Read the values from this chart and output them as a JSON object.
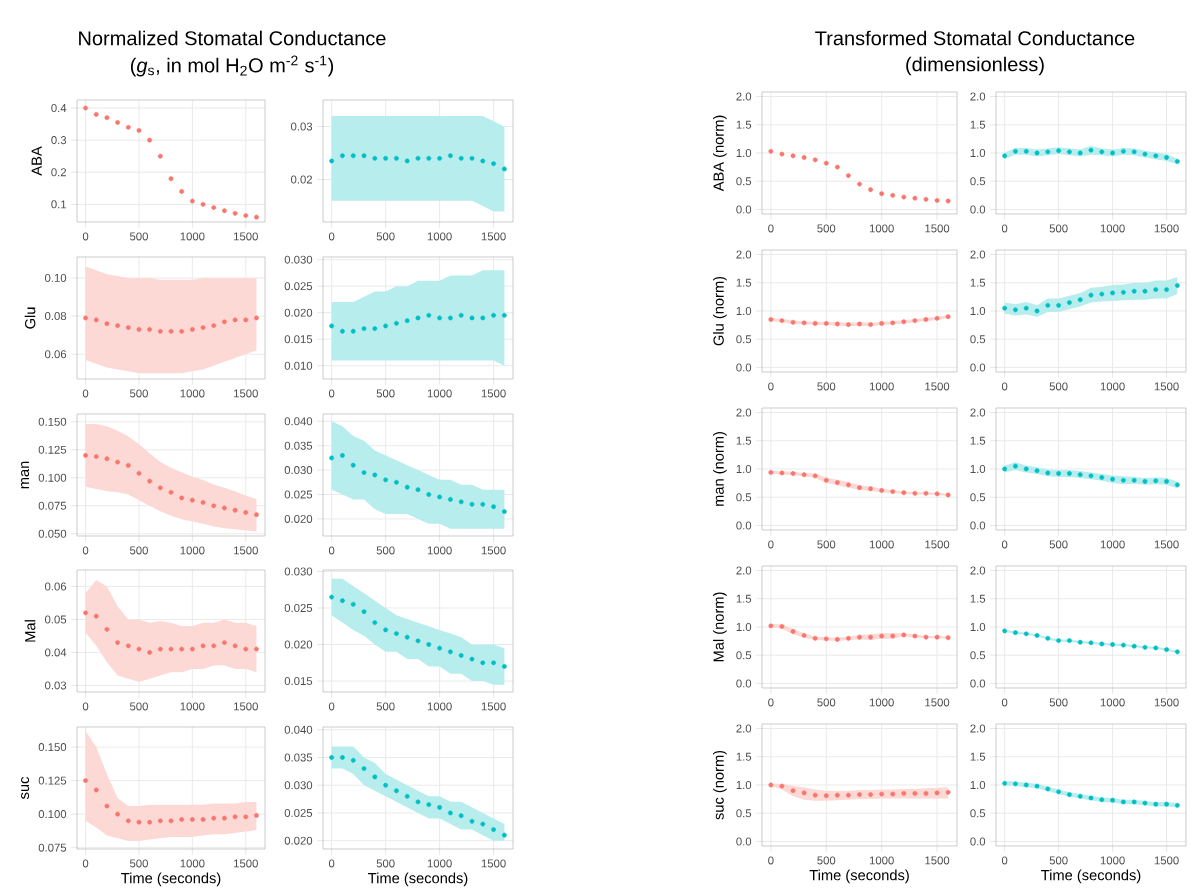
{
  "chart_data": [
    {
      "type": "scatter",
      "title": "Normalized Stomatal Conductance",
      "subtitle": "(*g*$_{s}$, in mol H$_{2}$O m$^{-2}$ s$^{-1}$)",
      "ylabel": "ABA",
      "x": [
        0,
        100,
        200,
        300,
        400,
        500,
        600,
        700,
        800,
        900,
        1000,
        1100,
        1200,
        1300,
        1400,
        1500,
        1600
      ],
      "xlim": [
        -80,
        1680
      ],
      "xticks": [
        0,
        500,
        1000,
        1500
      ],
      "ylim": [
        0.045,
        0.425
      ],
      "yticks": [
        0.1,
        0.2,
        0.3,
        0.4
      ],
      "grid": true,
      "marker": "circle",
      "series": [
        {
          "color": "#f8766d",
          "values": [
            0.4,
            0.38,
            0.37,
            0.355,
            0.34,
            0.33,
            0.3,
            0.25,
            0.18,
            0.14,
            0.11,
            0.1,
            0.09,
            0.08,
            0.072,
            0.065,
            0.06
          ]
        }
      ]
    },
    {
      "type": "scatter",
      "x": [
        0,
        100,
        200,
        300,
        400,
        500,
        600,
        700,
        800,
        900,
        1000,
        1100,
        1200,
        1300,
        1400,
        1500,
        1600
      ],
      "xlim": [
        -80,
        1680
      ],
      "xticks": [
        0,
        500,
        1000,
        1500
      ],
      "ylim": [
        0.012,
        0.035
      ],
      "yticks": [
        {
          "value": 0.02,
          "label": "0.02"
        },
        {
          "value": 0.03,
          "label": "0.03"
        }
      ],
      "grid": true,
      "marker": "circle",
      "series": [
        {
          "color": "#00bfc4",
          "values": [
            0.0235,
            0.0245,
            0.0245,
            0.0245,
            0.024,
            0.024,
            0.024,
            0.0235,
            0.024,
            0.024,
            0.024,
            0.0245,
            0.024,
            0.024,
            0.0235,
            0.023,
            0.022
          ],
          "lower": [
            0.016,
            0.016,
            0.016,
            0.016,
            0.016,
            0.016,
            0.016,
            0.016,
            0.016,
            0.016,
            0.016,
            0.016,
            0.016,
            0.016,
            0.015,
            0.014,
            0.014
          ],
          "upper": [
            0.032,
            0.032,
            0.032,
            0.032,
            0.032,
            0.032,
            0.032,
            0.032,
            0.032,
            0.032,
            0.032,
            0.032,
            0.032,
            0.032,
            0.032,
            0.031,
            0.03
          ]
        }
      ]
    },
    {
      "type": "scatter",
      "ylabel": "Glu",
      "x": [
        0,
        100,
        200,
        300,
        400,
        500,
        600,
        700,
        800,
        900,
        1000,
        1100,
        1200,
        1300,
        1400,
        1500,
        1600
      ],
      "xlim": [
        -80,
        1680
      ],
      "xticks": [
        0,
        500,
        1000,
        1500
      ],
      "ylim": [
        0.047,
        0.111
      ],
      "yticks": [
        {
          "value": 0.06,
          "label": "0.06"
        },
        {
          "value": 0.08,
          "label": "0.08"
        },
        {
          "value": 0.1,
          "label": "0.10"
        }
      ],
      "grid": true,
      "marker": "circle",
      "series": [
        {
          "color": "#f8766d",
          "values": [
            0.079,
            0.078,
            0.076,
            0.075,
            0.074,
            0.073,
            0.073,
            0.072,
            0.072,
            0.072,
            0.073,
            0.074,
            0.075,
            0.077,
            0.078,
            0.078,
            0.079
          ],
          "lower": [
            0.057,
            0.055,
            0.053,
            0.052,
            0.051,
            0.05,
            0.05,
            0.05,
            0.05,
            0.05,
            0.051,
            0.052,
            0.054,
            0.056,
            0.058,
            0.06,
            0.062
          ],
          "upper": [
            0.106,
            0.104,
            0.102,
            0.101,
            0.1,
            0.1,
            0.1,
            0.099,
            0.099,
            0.099,
            0.099,
            0.1,
            0.1,
            0.1,
            0.1,
            0.1,
            0.1
          ]
        }
      ]
    },
    {
      "type": "scatter",
      "x": [
        0,
        100,
        200,
        300,
        400,
        500,
        600,
        700,
        800,
        900,
        1000,
        1100,
        1200,
        1300,
        1400,
        1500,
        1600
      ],
      "xlim": [
        -80,
        1680
      ],
      "xticks": [
        0,
        500,
        1000,
        1500
      ],
      "ylim": [
        0.0075,
        0.0305
      ],
      "yticks": [
        {
          "value": 0.01,
          "label": "0.010"
        },
        {
          "value": 0.015,
          "label": "0.015"
        },
        {
          "value": 0.02,
          "label": "0.020"
        },
        {
          "value": 0.025,
          "label": "0.025"
        },
        {
          "value": 0.03,
          "label": "0.030"
        }
      ],
      "grid": true,
      "marker": "circle",
      "series": [
        {
          "color": "#00bfc4",
          "values": [
            0.0175,
            0.0165,
            0.0165,
            0.017,
            0.017,
            0.0175,
            0.018,
            0.0185,
            0.019,
            0.0195,
            0.019,
            0.019,
            0.0195,
            0.019,
            0.019,
            0.0195,
            0.0195
          ],
          "lower": [
            0.011,
            0.011,
            0.011,
            0.011,
            0.011,
            0.011,
            0.011,
            0.011,
            0.011,
            0.011,
            0.011,
            0.011,
            0.011,
            0.011,
            0.011,
            0.011,
            0.01
          ],
          "upper": [
            0.022,
            0.022,
            0.022,
            0.023,
            0.024,
            0.024,
            0.025,
            0.025,
            0.026,
            0.026,
            0.026,
            0.027,
            0.027,
            0.027,
            0.028,
            0.028,
            0.028
          ]
        }
      ]
    },
    {
      "type": "scatter",
      "ylabel": "man",
      "x": [
        0,
        100,
        200,
        300,
        400,
        500,
        600,
        700,
        800,
        900,
        1000,
        1100,
        1200,
        1300,
        1400,
        1500,
        1600
      ],
      "xlim": [
        -80,
        1680
      ],
      "xticks": [
        0,
        500,
        1000,
        1500
      ],
      "ylim": [
        0.048,
        0.157
      ],
      "yticks": [
        {
          "value": 0.05,
          "label": "0.050"
        },
        {
          "value": 0.075,
          "label": "0.075"
        },
        {
          "value": 0.1,
          "label": "0.100"
        },
        {
          "value": 0.125,
          "label": "0.125"
        },
        {
          "value": 0.15,
          "label": "0.150"
        }
      ],
      "grid": true,
      "marker": "circle",
      "series": [
        {
          "color": "#f8766d",
          "values": [
            0.12,
            0.119,
            0.117,
            0.114,
            0.111,
            0.104,
            0.097,
            0.091,
            0.087,
            0.082,
            0.08,
            0.078,
            0.075,
            0.073,
            0.071,
            0.069,
            0.067
          ],
          "lower": [
            0.092,
            0.09,
            0.088,
            0.087,
            0.085,
            0.08,
            0.075,
            0.07,
            0.066,
            0.063,
            0.061,
            0.059,
            0.0565,
            0.055,
            0.054,
            0.053,
            0.052
          ],
          "upper": [
            0.148,
            0.148,
            0.146,
            0.142,
            0.137,
            0.13,
            0.122,
            0.114,
            0.109,
            0.105,
            0.101,
            0.098,
            0.094,
            0.091,
            0.088,
            0.084,
            0.081
          ]
        }
      ]
    },
    {
      "type": "scatter",
      "x": [
        0,
        100,
        200,
        300,
        400,
        500,
        600,
        700,
        800,
        900,
        1000,
        1100,
        1200,
        1300,
        1400,
        1500,
        1600
      ],
      "xlim": [
        -80,
        1680
      ],
      "xticks": [
        0,
        500,
        1000,
        1500
      ],
      "ylim": [
        0.0165,
        0.0415
      ],
      "yticks": [
        {
          "value": 0.02,
          "label": "0.020"
        },
        {
          "value": 0.025,
          "label": "0.025"
        },
        {
          "value": 0.03,
          "label": "0.030"
        },
        {
          "value": 0.035,
          "label": "0.035"
        },
        {
          "value": 0.04,
          "label": "0.040"
        }
      ],
      "grid": true,
      "marker": "circle",
      "series": [
        {
          "color": "#00bfc4",
          "values": [
            0.0325,
            0.033,
            0.031,
            0.0295,
            0.029,
            0.028,
            0.0275,
            0.0265,
            0.026,
            0.025,
            0.0245,
            0.024,
            0.0235,
            0.023,
            0.023,
            0.0225,
            0.0215
          ],
          "lower": [
            0.026,
            0.025,
            0.024,
            0.024,
            0.022,
            0.021,
            0.021,
            0.021,
            0.02,
            0.019,
            0.019,
            0.018,
            0.018,
            0.018,
            0.018,
            0.018,
            0.018
          ],
          "upper": [
            0.04,
            0.039,
            0.037,
            0.036,
            0.034,
            0.033,
            0.032,
            0.031,
            0.03,
            0.029,
            0.028,
            0.028,
            0.027,
            0.027,
            0.026,
            0.026,
            0.026
          ]
        }
      ]
    },
    {
      "type": "scatter",
      "ylabel": "Mal",
      "x": [
        0,
        100,
        200,
        300,
        400,
        500,
        600,
        700,
        800,
        900,
        1000,
        1100,
        1200,
        1300,
        1400,
        1500,
        1600
      ],
      "xlim": [
        -80,
        1680
      ],
      "xticks": [
        0,
        500,
        1000,
        1500
      ],
      "ylim": [
        0.028,
        0.065
      ],
      "yticks": [
        {
          "value": 0.03,
          "label": "0.03"
        },
        {
          "value": 0.04,
          "label": "0.04"
        },
        {
          "value": 0.05,
          "label": "0.05"
        },
        {
          "value": 0.06,
          "label": "0.06"
        }
      ],
      "grid": true,
      "marker": "circle",
      "series": [
        {
          "color": "#f8766d",
          "values": [
            0.052,
            0.051,
            0.047,
            0.043,
            0.042,
            0.041,
            0.04,
            0.041,
            0.041,
            0.041,
            0.041,
            0.042,
            0.042,
            0.043,
            0.042,
            0.041,
            0.041
          ],
          "lower": [
            0.046,
            0.042,
            0.037,
            0.033,
            0.032,
            0.031,
            0.032,
            0.033,
            0.034,
            0.034,
            0.035,
            0.035,
            0.036,
            0.036,
            0.035,
            0.035,
            0.034
          ],
          "upper": [
            0.058,
            0.062,
            0.06,
            0.054,
            0.05,
            0.05,
            0.049,
            0.0495,
            0.049,
            0.048,
            0.048,
            0.049,
            0.049,
            0.05,
            0.049,
            0.049,
            0.048
          ]
        }
      ]
    },
    {
      "type": "scatter",
      "x": [
        0,
        100,
        200,
        300,
        400,
        500,
        600,
        700,
        800,
        900,
        1000,
        1100,
        1200,
        1300,
        1400,
        1500,
        1600
      ],
      "xlim": [
        -80,
        1680
      ],
      "xticks": [
        0,
        500,
        1000,
        1500
      ],
      "ylim": [
        0.0135,
        0.0302
      ],
      "yticks": [
        {
          "value": 0.015,
          "label": "0.015"
        },
        {
          "value": 0.02,
          "label": "0.020"
        },
        {
          "value": 0.025,
          "label": "0.025"
        },
        {
          "value": 0.03,
          "label": "0.030"
        }
      ],
      "grid": true,
      "marker": "circle",
      "series": [
        {
          "color": "#00bfc4",
          "values": [
            0.0265,
            0.026,
            0.0255,
            0.0245,
            0.023,
            0.022,
            0.0215,
            0.021,
            0.0205,
            0.02,
            0.0195,
            0.019,
            0.0185,
            0.018,
            0.0175,
            0.0175,
            0.017
          ],
          "lower": [
            0.024,
            0.023,
            0.022,
            0.0212,
            0.02,
            0.019,
            0.019,
            0.018,
            0.018,
            0.017,
            0.017,
            0.016,
            0.016,
            0.015,
            0.015,
            0.0145,
            0.0145
          ],
          "upper": [
            0.029,
            0.029,
            0.028,
            0.027,
            0.026,
            0.025,
            0.024,
            0.0235,
            0.023,
            0.0225,
            0.022,
            0.0215,
            0.021,
            0.02,
            0.02,
            0.02,
            0.0195
          ]
        }
      ]
    },
    {
      "type": "scatter",
      "ylabel": "suc",
      "xlabel": "Time (seconds)",
      "x": [
        0,
        100,
        200,
        300,
        400,
        500,
        600,
        700,
        800,
        900,
        1000,
        1100,
        1200,
        1300,
        1400,
        1500,
        1600
      ],
      "xlim": [
        -80,
        1680
      ],
      "xticks": [
        0,
        500,
        1000,
        1500
      ],
      "ylim": [
        0.074,
        0.165
      ],
      "yticks": [
        {
          "value": 0.075,
          "label": "0.075"
        },
        {
          "value": 0.1,
          "label": "0.100"
        },
        {
          "value": 0.125,
          "label": "0.125"
        },
        {
          "value": 0.15,
          "label": "0.150"
        }
      ],
      "grid": true,
      "marker": "circle",
      "series": [
        {
          "color": "#f8766d",
          "values": [
            0.125,
            0.118,
            0.106,
            0.1,
            0.095,
            0.094,
            0.094,
            0.095,
            0.095,
            0.096,
            0.096,
            0.096,
            0.097,
            0.097,
            0.098,
            0.098,
            0.099
          ],
          "lower": [
            0.095,
            0.09,
            0.084,
            0.082,
            0.08,
            0.08,
            0.081,
            0.082,
            0.083,
            0.083,
            0.083,
            0.084,
            0.085,
            0.085,
            0.086,
            0.087,
            0.088
          ],
          "upper": [
            0.162,
            0.15,
            0.13,
            0.112,
            0.106,
            0.106,
            0.107,
            0.107,
            0.107,
            0.107,
            0.107,
            0.107,
            0.108,
            0.108,
            0.108,
            0.109,
            0.109
          ]
        }
      ]
    },
    {
      "type": "scatter",
      "xlabel": "Time (seconds)",
      "x": [
        0,
        100,
        200,
        300,
        400,
        500,
        600,
        700,
        800,
        900,
        1000,
        1100,
        1200,
        1300,
        1400,
        1500,
        1600
      ],
      "xlim": [
        -80,
        1680
      ],
      "xticks": [
        0,
        500,
        1000,
        1500
      ],
      "ylim": [
        0.0185,
        0.0405
      ],
      "yticks": [
        {
          "value": 0.02,
          "label": "0.020"
        },
        {
          "value": 0.025,
          "label": "0.025"
        },
        {
          "value": 0.03,
          "label": "0.030"
        },
        {
          "value": 0.035,
          "label": "0.035"
        },
        {
          "value": 0.04,
          "label": "0.040"
        }
      ],
      "grid": true,
      "marker": "circle",
      "series": [
        {
          "color": "#00bfc4",
          "values": [
            0.035,
            0.035,
            0.0345,
            0.033,
            0.0315,
            0.03,
            0.029,
            0.028,
            0.027,
            0.0265,
            0.026,
            0.025,
            0.0245,
            0.0235,
            0.023,
            0.022,
            0.021
          ],
          "lower": [
            0.033,
            0.033,
            0.032,
            0.03,
            0.029,
            0.028,
            0.027,
            0.026,
            0.025,
            0.024,
            0.024,
            0.023,
            0.022,
            0.022,
            0.021,
            0.02,
            0.02
          ],
          "upper": [
            0.037,
            0.037,
            0.037,
            0.035,
            0.034,
            0.032,
            0.031,
            0.03,
            0.029,
            0.028,
            0.028,
            0.027,
            0.027,
            0.026,
            0.025,
            0.024,
            0.023
          ]
        }
      ]
    },
    {
      "type": "scatter",
      "title": "Transformed Stomatal Conductance",
      "subtitle": "(dimensionless)",
      "ylabel": "ABA (norm)",
      "x": [
        0,
        100,
        200,
        300,
        400,
        500,
        600,
        700,
        800,
        900,
        1000,
        1100,
        1200,
        1300,
        1400,
        1500,
        1600
      ],
      "xlim": [
        -80,
        1680
      ],
      "xticks": [
        0,
        500,
        1000,
        1500
      ],
      "ylim": [
        -0.08,
        2.08
      ],
      "yticks": [
        {
          "value": 0,
          "label": "0.0"
        },
        {
          "value": 0.5,
          "label": "0.5"
        },
        {
          "value": 1,
          "label": "1.0"
        },
        {
          "value": 1.5,
          "label": "1.5"
        },
        {
          "value": 2,
          "label": "2.0"
        }
      ],
      "grid": true,
      "marker": "circle",
      "series": [
        {
          "color": "#f8766d",
          "values": [
            1.03,
            0.98,
            0.95,
            0.92,
            0.88,
            0.82,
            0.75,
            0.6,
            0.45,
            0.35,
            0.28,
            0.25,
            0.22,
            0.2,
            0.18,
            0.16,
            0.15
          ]
        }
      ]
    },
    {
      "type": "scatter",
      "x": [
        0,
        100,
        200,
        300,
        400,
        500,
        600,
        700,
        800,
        900,
        1000,
        1100,
        1200,
        1300,
        1400,
        1500,
        1600
      ],
      "xlim": [
        -80,
        1680
      ],
      "xticks": [
        0,
        500,
        1000,
        1500
      ],
      "ylim": [
        -0.08,
        2.08
      ],
      "yticks": [
        {
          "value": 0,
          "label": "0.0"
        },
        {
          "value": 0.5,
          "label": "0.5"
        },
        {
          "value": 1,
          "label": "1.0"
        },
        {
          "value": 1.5,
          "label": "1.5"
        },
        {
          "value": 2,
          "label": "2.0"
        }
      ],
      "grid": true,
      "marker": "circle",
      "series": [
        {
          "color": "#00bfc4",
          "values": [
            0.95,
            1.03,
            1.03,
            1.0,
            1.02,
            1.04,
            1.02,
            1.0,
            1.05,
            1.02,
            1.0,
            1.03,
            1.02,
            0.98,
            0.95,
            0.92,
            0.85
          ],
          "lower": [
            0.89,
            0.97,
            0.97,
            0.94,
            0.96,
            0.98,
            0.96,
            0.94,
            0.97,
            0.96,
            0.94,
            0.97,
            0.96,
            0.92,
            0.89,
            0.86,
            0.8
          ],
          "upper": [
            1.01,
            1.09,
            1.09,
            1.06,
            1.08,
            1.1,
            1.08,
            1.06,
            1.13,
            1.08,
            1.06,
            1.09,
            1.08,
            1.04,
            1.01,
            0.98,
            0.9
          ]
        }
      ]
    },
    {
      "type": "scatter",
      "ylabel": "Glu (norm)",
      "x": [
        0,
        100,
        200,
        300,
        400,
        500,
        600,
        700,
        800,
        900,
        1000,
        1100,
        1200,
        1300,
        1400,
        1500,
        1600
      ],
      "xlim": [
        -80,
        1680
      ],
      "xticks": [
        0,
        500,
        1000,
        1500
      ],
      "ylim": [
        -0.08,
        2.08
      ],
      "yticks": [
        {
          "value": 0,
          "label": "0.0"
        },
        {
          "value": 0.5,
          "label": "0.5"
        },
        {
          "value": 1,
          "label": "1.0"
        },
        {
          "value": 1.5,
          "label": "1.5"
        },
        {
          "value": 2,
          "label": "2.0"
        }
      ],
      "grid": true,
      "marker": "circle",
      "series": [
        {
          "color": "#f8766d",
          "values": [
            0.85,
            0.83,
            0.8,
            0.79,
            0.78,
            0.78,
            0.77,
            0.76,
            0.77,
            0.76,
            0.78,
            0.79,
            0.81,
            0.83,
            0.85,
            0.87,
            0.9
          ],
          "lower": [
            0.82,
            0.8,
            0.77,
            0.76,
            0.75,
            0.75,
            0.74,
            0.73,
            0.74,
            0.73,
            0.75,
            0.76,
            0.78,
            0.8,
            0.82,
            0.84,
            0.87
          ],
          "upper": [
            0.88,
            0.86,
            0.83,
            0.82,
            0.81,
            0.81,
            0.8,
            0.79,
            0.8,
            0.79,
            0.81,
            0.82,
            0.84,
            0.86,
            0.88,
            0.9,
            0.93
          ]
        }
      ]
    },
    {
      "type": "scatter",
      "x": [
        0,
        100,
        200,
        300,
        400,
        500,
        600,
        700,
        800,
        900,
        1000,
        1100,
        1200,
        1300,
        1400,
        1500,
        1600
      ],
      "xlim": [
        -80,
        1680
      ],
      "xticks": [
        0,
        500,
        1000,
        1500
      ],
      "ylim": [
        -0.08,
        2.08
      ],
      "yticks": [
        {
          "value": 0,
          "label": "0.0"
        },
        {
          "value": 0.5,
          "label": "0.5"
        },
        {
          "value": 1,
          "label": "1.0"
        },
        {
          "value": 1.5,
          "label": "1.5"
        },
        {
          "value": 2,
          "label": "2.0"
        }
      ],
      "grid": true,
      "marker": "circle",
      "series": [
        {
          "color": "#00bfc4",
          "values": [
            1.05,
            1.02,
            1.05,
            1.0,
            1.1,
            1.1,
            1.15,
            1.2,
            1.28,
            1.3,
            1.32,
            1.33,
            1.35,
            1.35,
            1.38,
            1.38,
            1.45
          ],
          "lower": [
            0.95,
            0.92,
            0.94,
            0.9,
            0.98,
            0.98,
            1.03,
            1.08,
            1.15,
            1.17,
            1.175,
            1.19,
            1.2,
            1.2,
            1.22,
            1.22,
            1.3
          ],
          "upper": [
            1.15,
            1.12,
            1.16,
            1.1,
            1.22,
            1.22,
            1.27,
            1.32,
            1.41,
            1.43,
            1.46,
            1.47,
            1.5,
            1.5,
            1.54,
            1.54,
            1.6
          ]
        }
      ]
    },
    {
      "type": "scatter",
      "ylabel": "man (norm)",
      "x": [
        0,
        100,
        200,
        300,
        400,
        500,
        600,
        700,
        800,
        900,
        1000,
        1100,
        1200,
        1300,
        1400,
        1500,
        1600
      ],
      "xlim": [
        -80,
        1680
      ],
      "xticks": [
        0,
        500,
        1000,
        1500
      ],
      "ylim": [
        -0.08,
        2.08
      ],
      "yticks": [
        {
          "value": 0,
          "label": "0.0"
        },
        {
          "value": 0.5,
          "label": "0.5"
        },
        {
          "value": 1,
          "label": "1.0"
        },
        {
          "value": 1.5,
          "label": "1.5"
        },
        {
          "value": 2,
          "label": "2.0"
        }
      ],
      "grid": true,
      "marker": "circle",
      "series": [
        {
          "color": "#f8766d",
          "values": [
            0.94,
            0.93,
            0.92,
            0.9,
            0.88,
            0.8,
            0.76,
            0.72,
            0.67,
            0.65,
            0.62,
            0.6,
            0.58,
            0.57,
            0.57,
            0.56,
            0.54
          ],
          "lower": [
            0.91,
            0.9,
            0.89,
            0.87,
            0.84,
            0.75,
            0.71,
            0.67,
            0.63,
            0.61,
            0.59,
            0.57,
            0.56,
            0.55,
            0.55,
            0.54,
            0.52
          ],
          "upper": [
            0.97,
            0.96,
            0.95,
            0.93,
            0.92,
            0.85,
            0.81,
            0.77,
            0.71,
            0.69,
            0.65,
            0.63,
            0.6,
            0.59,
            0.59,
            0.58,
            0.56
          ]
        }
      ]
    },
    {
      "type": "scatter",
      "x": [
        0,
        100,
        200,
        300,
        400,
        500,
        600,
        700,
        800,
        900,
        1000,
        1100,
        1200,
        1300,
        1400,
        1500,
        1600
      ],
      "xlim": [
        -80,
        1680
      ],
      "xticks": [
        0,
        500,
        1000,
        1500
      ],
      "ylim": [
        -0.08,
        2.08
      ],
      "yticks": [
        {
          "value": 0,
          "label": "0.0"
        },
        {
          "value": 0.5,
          "label": "0.5"
        },
        {
          "value": 1,
          "label": "1.0"
        },
        {
          "value": 1.5,
          "label": "1.5"
        },
        {
          "value": 2,
          "label": "2.0"
        }
      ],
      "grid": true,
      "marker": "circle",
      "series": [
        {
          "color": "#00bfc4",
          "values": [
            1.0,
            1.05,
            1.0,
            0.97,
            0.93,
            0.92,
            0.92,
            0.9,
            0.88,
            0.85,
            0.82,
            0.8,
            0.8,
            0.78,
            0.79,
            0.78,
            0.72
          ],
          "lower": [
            0.94,
            0.98,
            0.94,
            0.91,
            0.87,
            0.86,
            0.86,
            0.84,
            0.82,
            0.79,
            0.75,
            0.73,
            0.74,
            0.72,
            0.73,
            0.72,
            0.66
          ],
          "upper": [
            1.06,
            1.12,
            1.06,
            1.03,
            0.99,
            0.98,
            0.98,
            0.965,
            0.94,
            0.91,
            0.885,
            0.87,
            0.86,
            0.84,
            0.85,
            0.84,
            0.78
          ]
        }
      ]
    },
    {
      "type": "scatter",
      "ylabel": "Mal (norm)",
      "x": [
        0,
        100,
        200,
        300,
        400,
        500,
        600,
        700,
        800,
        900,
        1000,
        1100,
        1200,
        1300,
        1400,
        1500,
        1600
      ],
      "xlim": [
        -80,
        1680
      ],
      "xticks": [
        0,
        500,
        1000,
        1500
      ],
      "ylim": [
        -0.08,
        2.08
      ],
      "yticks": [
        {
          "value": 0,
          "label": "0.0"
        },
        {
          "value": 0.5,
          "label": "0.5"
        },
        {
          "value": 1,
          "label": "1.0"
        },
        {
          "value": 1.5,
          "label": "1.5"
        },
        {
          "value": 2,
          "label": "2.0"
        }
      ],
      "grid": true,
      "marker": "circle",
      "series": [
        {
          "color": "#f8766d",
          "values": [
            1.02,
            1.01,
            0.92,
            0.85,
            0.8,
            0.79,
            0.78,
            0.8,
            0.82,
            0.82,
            0.84,
            0.84,
            0.86,
            0.84,
            0.82,
            0.82,
            0.81
          ],
          "lower": [
            0.99,
            0.97,
            0.87,
            0.81,
            0.77,
            0.76,
            0.75,
            0.77,
            0.78,
            0.77,
            0.79,
            0.79,
            0.83,
            0.81,
            0.8,
            0.8,
            0.79
          ],
          "upper": [
            1.05,
            1.05,
            0.97,
            0.89,
            0.83,
            0.82,
            0.81,
            0.83,
            0.86,
            0.87,
            0.89,
            0.895,
            0.89,
            0.87,
            0.84,
            0.84,
            0.83
          ]
        }
      ]
    },
    {
      "type": "scatter",
      "x": [
        0,
        100,
        200,
        300,
        400,
        500,
        600,
        700,
        800,
        900,
        1000,
        1100,
        1200,
        1300,
        1400,
        1500,
        1600
      ],
      "xlim": [
        -80,
        1680
      ],
      "xticks": [
        0,
        500,
        1000,
        1500
      ],
      "ylim": [
        -0.08,
        2.08
      ],
      "yticks": [
        {
          "value": 0,
          "label": "0.0"
        },
        {
          "value": 0.5,
          "label": "0.5"
        },
        {
          "value": 1,
          "label": "1.0"
        },
        {
          "value": 1.5,
          "label": "1.5"
        },
        {
          "value": 2,
          "label": "2.0"
        }
      ],
      "grid": true,
      "marker": "circle",
      "series": [
        {
          "color": "#00bfc4",
          "values": [
            0.93,
            0.9,
            0.88,
            0.85,
            0.8,
            0.76,
            0.76,
            0.73,
            0.72,
            0.7,
            0.69,
            0.68,
            0.66,
            0.64,
            0.63,
            0.6,
            0.56
          ],
          "lower": [
            0.91,
            0.88,
            0.86,
            0.83,
            0.78,
            0.74,
            0.74,
            0.71,
            0.7,
            0.68,
            0.67,
            0.66,
            0.64,
            0.62,
            0.61,
            0.58,
            0.54
          ],
          "upper": [
            0.95,
            0.92,
            0.9,
            0.87,
            0.82,
            0.78,
            0.78,
            0.75,
            0.74,
            0.72,
            0.71,
            0.7,
            0.68,
            0.66,
            0.65,
            0.62,
            0.58
          ]
        }
      ]
    },
    {
      "type": "scatter",
      "ylabel": "suc (norm)",
      "xlabel": "Time (seconds)",
      "x": [
        0,
        100,
        200,
        300,
        400,
        500,
        600,
        700,
        800,
        900,
        1000,
        1100,
        1200,
        1300,
        1400,
        1500,
        1600
      ],
      "xlim": [
        -80,
        1680
      ],
      "xticks": [
        0,
        500,
        1000,
        1500
      ],
      "ylim": [
        -0.08,
        2.08
      ],
      "yticks": [
        {
          "value": 0,
          "label": "0.0"
        },
        {
          "value": 0.5,
          "label": "0.5"
        },
        {
          "value": 1,
          "label": "1.0"
        },
        {
          "value": 1.5,
          "label": "1.5"
        },
        {
          "value": 2,
          "label": "2.0"
        }
      ],
      "grid": true,
      "marker": "circle",
      "series": [
        {
          "color": "#f8766d",
          "values": [
            1.0,
            0.98,
            0.9,
            0.86,
            0.82,
            0.81,
            0.82,
            0.82,
            0.83,
            0.83,
            0.84,
            0.84,
            0.85,
            0.85,
            0.85,
            0.86,
            0.87
          ],
          "lower": [
            0.98,
            0.92,
            0.8,
            0.74,
            0.72,
            0.72,
            0.73,
            0.74,
            0.75,
            0.75,
            0.76,
            0.76,
            0.76,
            0.76,
            0.76,
            0.76,
            0.76
          ],
          "upper": [
            1.02,
            1.02,
            0.98,
            0.96,
            0.92,
            0.9,
            0.895,
            0.9,
            0.91,
            0.91,
            0.92,
            0.92,
            0.93,
            0.93,
            0.94,
            0.95,
            0.96
          ]
        }
      ]
    },
    {
      "type": "scatter",
      "xlabel": "Time (seconds)",
      "x": [
        0,
        100,
        200,
        300,
        400,
        500,
        600,
        700,
        800,
        900,
        1000,
        1100,
        1200,
        1300,
        1400,
        1500,
        1600
      ],
      "xlim": [
        -80,
        1680
      ],
      "xticks": [
        0,
        500,
        1000,
        1500
      ],
      "ylim": [
        -0.08,
        2.08
      ],
      "yticks": [
        {
          "value": 0,
          "label": "0.0"
        },
        {
          "value": 0.5,
          "label": "0.5"
        },
        {
          "value": 1,
          "label": "1.0"
        },
        {
          "value": 1.5,
          "label": "1.5"
        },
        {
          "value": 2,
          "label": "2.0"
        }
      ],
      "grid": true,
      "marker": "circle",
      "series": [
        {
          "color": "#00bfc4",
          "values": [
            1.03,
            1.02,
            1.0,
            0.98,
            0.93,
            0.88,
            0.83,
            0.8,
            0.77,
            0.74,
            0.73,
            0.7,
            0.7,
            0.68,
            0.66,
            0.66,
            0.64
          ],
          "lower": [
            0.99,
            0.98,
            0.96,
            0.94,
            0.89,
            0.84,
            0.79,
            0.76,
            0.73,
            0.7,
            0.69,
            0.66,
            0.66,
            0.64,
            0.62,
            0.62,
            0.6
          ],
          "upper": [
            1.07,
            1.06,
            1.04,
            1.02,
            0.97,
            0.92,
            0.87,
            0.84,
            0.81,
            0.78,
            0.77,
            0.74,
            0.74,
            0.72,
            0.7,
            0.7,
            0.68
          ]
        }
      ]
    }
  ]
}
